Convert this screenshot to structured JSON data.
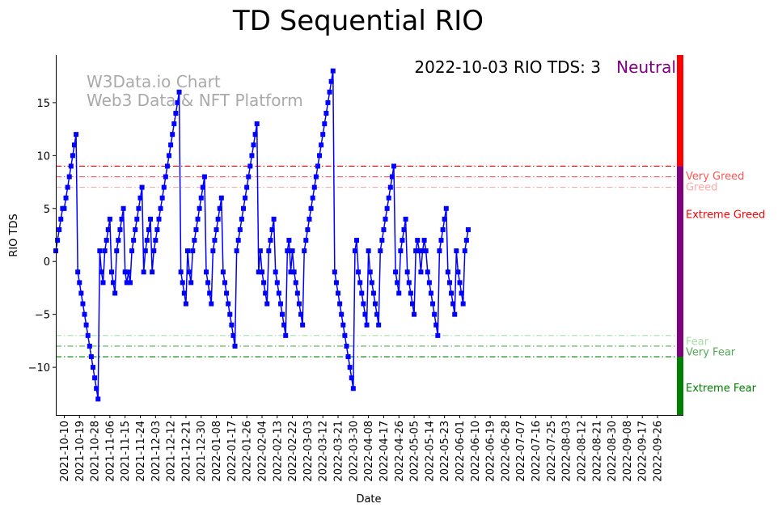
{
  "chart_data": {
    "type": "line",
    "title": "TD Sequential RIO",
    "xlabel": "Date",
    "ylabel": "RIO TDS",
    "ylim": [
      -14.5,
      19.5
    ],
    "xlim": [
      "2021-10-05",
      "2022-10-07"
    ],
    "grid": false,
    "watermark": [
      "W3Data.io Chart",
      "Web3 Data & NFT Platform"
    ],
    "annotation": {
      "text": "2022-10-03 RIO TDS: 3",
      "status": "Neutral",
      "status_color": "#800080"
    },
    "yticks": [
      -10,
      -5,
      0,
      5,
      10,
      15
    ],
    "xticks": [
      "2021-10-10",
      "2021-10-19",
      "2021-10-28",
      "2021-11-06",
      "2021-11-15",
      "2021-11-24",
      "2021-12-03",
      "2021-12-12",
      "2021-12-21",
      "2021-12-30",
      "2022-01-08",
      "2022-01-17",
      "2022-01-26",
      "2022-02-04",
      "2022-02-13",
      "2022-02-22",
      "2022-03-03",
      "2022-03-12",
      "2022-03-21",
      "2022-03-30",
      "2022-04-08",
      "2022-04-17",
      "2022-04-26",
      "2022-05-05",
      "2022-05-14",
      "2022-05-23",
      "2022-06-01",
      "2022-06-10",
      "2022-06-19",
      "2022-06-28",
      "2022-07-07",
      "2022-07-16",
      "2022-07-25",
      "2022-08-03",
      "2022-08-12",
      "2022-08-21",
      "2022-08-30",
      "2022-09-08",
      "2022-09-17",
      "2022-09-26"
    ],
    "thresholds": [
      {
        "value": 9,
        "label": "Extreme Greed",
        "color": "#ff0000"
      },
      {
        "value": 8,
        "label": "Very Greed",
        "color": "#ff5555"
      },
      {
        "value": 7,
        "label": "Greed",
        "color": "#ffaaaa"
      },
      {
        "value": -7,
        "label": "Fear",
        "color": "#aaddaa"
      },
      {
        "value": -8,
        "label": "Very Fear",
        "color": "#55aa55"
      },
      {
        "value": -9,
        "label": "Extreme Fear",
        "color": "#008000"
      }
    ],
    "zone_bands": [
      {
        "from": 9,
        "to": 19.5,
        "color": "#ff0000"
      },
      {
        "from": -9,
        "to": 9,
        "color": "#800080"
      },
      {
        "from": -14.5,
        "to": -9,
        "color": "#008000"
      }
    ],
    "series": [
      {
        "color": "#0000ff",
        "marker": "square",
        "start": "2021-10-05",
        "values": [
          1,
          2,
          3,
          4,
          5,
          5,
          6,
          7,
          8,
          9,
          10,
          11,
          12,
          -1,
          -2,
          -3,
          -4,
          -5,
          -6,
          -7,
          -8,
          -9,
          -10,
          -11,
          -12,
          -13,
          1,
          -1,
          -2,
          1,
          2,
          3,
          4,
          -1,
          -2,
          -3,
          1,
          2,
          3,
          4,
          5,
          -1,
          -2,
          -1,
          -2,
          1,
          2,
          3,
          4,
          5,
          6,
          7,
          -1,
          1,
          2,
          3,
          4,
          -1,
          1,
          2,
          3,
          4,
          5,
          6,
          7,
          8,
          9,
          10,
          11,
          12,
          13,
          14,
          15,
          16,
          -1,
          -2,
          -3,
          -4,
          1,
          -1,
          -2,
          1,
          2,
          3,
          4,
          5,
          6,
          7,
          8,
          -1,
          -2,
          -3,
          -4,
          1,
          2,
          3,
          4,
          5,
          6,
          -1,
          -2,
          -3,
          -4,
          -5,
          -6,
          -7,
          -8,
          1,
          2,
          3,
          4,
          5,
          6,
          7,
          8,
          9,
          10,
          11,
          12,
          13,
          -1,
          1,
          -1,
          -2,
          -3,
          -4,
          1,
          2,
          3,
          4,
          -1,
          -2,
          -3,
          -4,
          -5,
          -6,
          -7,
          1,
          2,
          -1,
          1,
          -1,
          -2,
          -3,
          -4,
          -5,
          -6,
          1,
          2,
          3,
          4,
          5,
          6,
          7,
          8,
          9,
          10,
          11,
          12,
          13,
          14,
          15,
          16,
          17,
          18,
          -1,
          -2,
          -3,
          -4,
          -5,
          -6,
          -7,
          -8,
          -9,
          -10,
          -11,
          -12,
          1,
          2,
          -1,
          -2,
          -3,
          -4,
          -5,
          -6,
          1,
          -1,
          -2,
          -3,
          -4,
          -5,
          -6,
          1,
          2,
          3,
          4,
          5,
          6,
          7,
          8,
          9,
          -1,
          -2,
          -3,
          1,
          2,
          3,
          4,
          -1,
          -2,
          -3,
          -4,
          -5,
          1,
          2,
          1,
          -1,
          1,
          2,
          1,
          -1,
          -2,
          -3,
          -4,
          -5,
          -6,
          -7,
          1,
          2,
          3,
          4,
          5,
          -1,
          -2,
          -3,
          -4,
          -5,
          1,
          -1,
          -2,
          -3,
          -4,
          1,
          2,
          3
        ]
      }
    ]
  }
}
